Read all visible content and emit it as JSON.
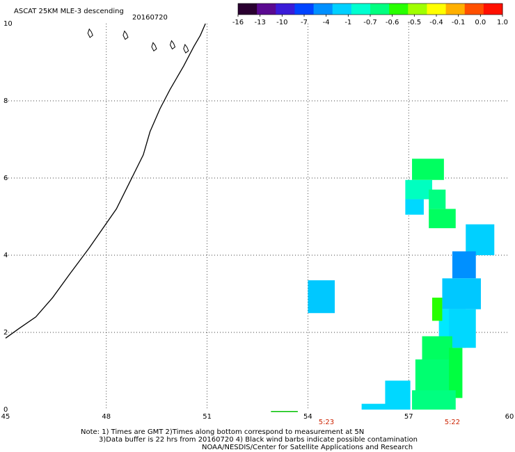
{
  "header": {
    "title": "ASCAT 25KM MLE-3 descending",
    "date": "20160720"
  },
  "colorbar": {
    "colors": [
      "#2a0030",
      "#5a0a90",
      "#3a1cd8",
      "#0044ff",
      "#0090ff",
      "#00d0ff",
      "#00ffd0",
      "#00ff80",
      "#28ff00",
      "#a0ff00",
      "#ffff00",
      "#ffb000",
      "#ff5000",
      "#ff1000"
    ],
    "labels": [
      "-16",
      "-13",
      "-10",
      "-7",
      "-4",
      "-1",
      "-0.7",
      "-0.6",
      "-0.5",
      "-0.4",
      "-0.1",
      "0.0",
      "1.0"
    ]
  },
  "map": {
    "lon_range": [
      45,
      60
    ],
    "lat_range": [
      0,
      10
    ],
    "lon_ticks": [
      45,
      48,
      51,
      54,
      57,
      60
    ],
    "lat_ticks": [
      0,
      2,
      4,
      6,
      8,
      10
    ],
    "lon_tick_labels": [
      "45",
      "48",
      "51",
      "54",
      "57",
      "60"
    ],
    "lat_tick_labels": [
      "0",
      "2",
      "4",
      "6",
      "8",
      "10"
    ],
    "coastline": [
      [
        45.0,
        1.85
      ],
      [
        45.4,
        2.1
      ],
      [
        45.9,
        2.4
      ],
      [
        46.4,
        2.9
      ],
      [
        46.9,
        3.5
      ],
      [
        47.5,
        4.2
      ],
      [
        47.9,
        4.7
      ],
      [
        48.3,
        5.2
      ],
      [
        48.7,
        5.9
      ],
      [
        49.1,
        6.6
      ],
      [
        49.3,
        7.2
      ],
      [
        49.6,
        7.8
      ],
      [
        49.9,
        8.3
      ],
      [
        50.3,
        8.9
      ],
      [
        50.6,
        9.4
      ],
      [
        50.8,
        9.7
      ],
      [
        50.95,
        10.0
      ]
    ],
    "islands": [
      [
        47.45,
        9.75
      ],
      [
        48.5,
        9.7
      ],
      [
        49.35,
        9.4
      ],
      [
        49.9,
        9.45
      ],
      [
        50.3,
        9.35
      ]
    ],
    "cells": [
      {
        "lon": 57.1,
        "lat": 5.95,
        "w": 0.95,
        "h": 0.55,
        "color": "#00ff60"
      },
      {
        "lon": 56.9,
        "lat": 5.45,
        "w": 0.8,
        "h": 0.5,
        "color": "#00ffc0"
      },
      {
        "lon": 56.9,
        "lat": 5.05,
        "w": 0.55,
        "h": 0.4,
        "color": "#00d8ff"
      },
      {
        "lon": 57.6,
        "lat": 5.2,
        "w": 0.5,
        "h": 0.5,
        "color": "#00ff80"
      },
      {
        "lon": 57.6,
        "lat": 4.7,
        "w": 0.8,
        "h": 0.5,
        "color": "#00ff60"
      },
      {
        "lon": 58.7,
        "lat": 4.0,
        "w": 0.85,
        "h": 0.8,
        "color": "#00d0ff"
      },
      {
        "lon": 58.3,
        "lat": 3.4,
        "w": 0.7,
        "h": 0.7,
        "color": "#0090ff"
      },
      {
        "lon": 58.0,
        "lat": 2.6,
        "w": 1.15,
        "h": 0.8,
        "color": "#00c8ff"
      },
      {
        "lon": 54.0,
        "lat": 2.5,
        "w": 0.8,
        "h": 0.85,
        "color": "#00c8ff"
      },
      {
        "lon": 57.9,
        "lat": 1.6,
        "w": 0.8,
        "h": 1.0,
        "color": "#00e8ff"
      },
      {
        "lon": 58.2,
        "lat": 1.6,
        "w": 0.8,
        "h": 1.0,
        "color": "#00d8ff"
      },
      {
        "lon": 57.7,
        "lat": 2.3,
        "w": 0.3,
        "h": 0.6,
        "color": "#28ff00"
      },
      {
        "lon": 57.4,
        "lat": 1.0,
        "w": 0.9,
        "h": 0.9,
        "color": "#00ff60"
      },
      {
        "lon": 57.2,
        "lat": 0.4,
        "w": 1.2,
        "h": 0.9,
        "color": "#00ff70"
      },
      {
        "lon": 58.2,
        "lat": 0.3,
        "w": 0.4,
        "h": 1.3,
        "color": "#00ff40"
      },
      {
        "lon": 57.1,
        "lat": 0.0,
        "w": 1.3,
        "h": 0.5,
        "color": "#00ff80"
      },
      {
        "lon": 56.3,
        "lat": 0.0,
        "w": 0.75,
        "h": 0.75,
        "color": "#00d8ff"
      },
      {
        "lon": 55.6,
        "lat": 0.0,
        "w": 0.75,
        "h": 0.15,
        "color": "#00d8ff"
      }
    ],
    "green_line": {
      "lon1": 52.9,
      "lon2": 53.7,
      "lat": -0.05,
      "color": "#00c000"
    },
    "time_marks": [
      {
        "lon": 54.55,
        "text": "5:23",
        "color": "#cc2200"
      },
      {
        "lon": 58.3,
        "text": "5:22",
        "color": "#cc2200"
      }
    ]
  },
  "notes": {
    "line1": "Note: 1) Times are GMT 2)Times along bottom correspond to measurement at 5N",
    "line2": "3)Data buffer is 22 hrs from 20160720 4) Black wind barbs indicate possible contamination",
    "line3": "NOAA/NESDIS/Center for Satellite Applications and Research"
  }
}
